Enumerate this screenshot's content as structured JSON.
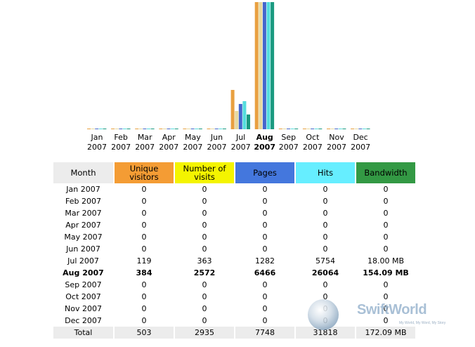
{
  "chart_data": {
    "type": "bar",
    "categories": [
      {
        "month": "Jan",
        "year": "2007"
      },
      {
        "month": "Feb",
        "year": "2007"
      },
      {
        "month": "Mar",
        "year": "2007"
      },
      {
        "month": "Apr",
        "year": "2007"
      },
      {
        "month": "May",
        "year": "2007"
      },
      {
        "month": "Jun",
        "year": "2007"
      },
      {
        "month": "Jul",
        "year": "2007"
      },
      {
        "month": "Aug",
        "year": "2007",
        "current": true
      },
      {
        "month": "Sep",
        "year": "2007"
      },
      {
        "month": "Oct",
        "year": "2007"
      },
      {
        "month": "Nov",
        "year": "2007"
      },
      {
        "month": "Dec",
        "year": "2007"
      }
    ],
    "series": [
      {
        "name": "Unique visitors",
        "color": "#e8a040",
        "values": [
          0,
          0,
          0,
          0,
          0,
          0,
          119,
          384,
          0,
          0,
          0,
          0
        ]
      },
      {
        "name": "Number of visits",
        "color": "#e6d9a0",
        "values": [
          0,
          0,
          0,
          0,
          0,
          0,
          363,
          2572,
          0,
          0,
          0,
          0
        ]
      },
      {
        "name": "Pages",
        "color": "#4466cc",
        "values": [
          0,
          0,
          0,
          0,
          0,
          0,
          1282,
          6466,
          0,
          0,
          0,
          0
        ]
      },
      {
        "name": "Hits",
        "color": "#55dddd",
        "values": [
          0,
          0,
          0,
          0,
          0,
          0,
          5754,
          26064,
          0,
          0,
          0,
          0
        ]
      },
      {
        "name": "Bandwidth",
        "color": "#1a9a80",
        "values": [
          0,
          0,
          0,
          0,
          0,
          0,
          18.0,
          154.09,
          0,
          0,
          0,
          0
        ]
      }
    ]
  },
  "table": {
    "headers": {
      "month": "Month",
      "visitors": "Unique visitors",
      "visits": "Number of visits",
      "pages": "Pages",
      "hits": "Hits",
      "bandwidth": "Bandwidth"
    },
    "header_colors": {
      "month": "#ececec",
      "visitors": "#f49c34",
      "visits": "#f4f400",
      "pages": "#4477dd",
      "hits": "#66eeff",
      "bandwidth": "#339944"
    },
    "rows": [
      {
        "month": "Jan 2007",
        "visitors": "0",
        "visits": "0",
        "pages": "0",
        "hits": "0",
        "bandwidth": "0"
      },
      {
        "month": "Feb 2007",
        "visitors": "0",
        "visits": "0",
        "pages": "0",
        "hits": "0",
        "bandwidth": "0"
      },
      {
        "month": "Mar 2007",
        "visitors": "0",
        "visits": "0",
        "pages": "0",
        "hits": "0",
        "bandwidth": "0"
      },
      {
        "month": "Apr 2007",
        "visitors": "0",
        "visits": "0",
        "pages": "0",
        "hits": "0",
        "bandwidth": "0"
      },
      {
        "month": "May 2007",
        "visitors": "0",
        "visits": "0",
        "pages": "0",
        "hits": "0",
        "bandwidth": "0"
      },
      {
        "month": "Jun 2007",
        "visitors": "0",
        "visits": "0",
        "pages": "0",
        "hits": "0",
        "bandwidth": "0"
      },
      {
        "month": "Jul 2007",
        "visitors": "119",
        "visits": "363",
        "pages": "1282",
        "hits": "5754",
        "bandwidth": "18.00 MB"
      },
      {
        "month": "Aug 2007",
        "visitors": "384",
        "visits": "2572",
        "pages": "6466",
        "hits": "26064",
        "bandwidth": "154.09 MB",
        "current": true
      },
      {
        "month": "Sep 2007",
        "visitors": "0",
        "visits": "0",
        "pages": "0",
        "hits": "0",
        "bandwidth": "0"
      },
      {
        "month": "Oct 2007",
        "visitors": "0",
        "visits": "0",
        "pages": "0",
        "hits": "0",
        "bandwidth": "0"
      },
      {
        "month": "Nov 2007",
        "visitors": "0",
        "visits": "0",
        "pages": "0",
        "hits": "0",
        "bandwidth": "0"
      },
      {
        "month": "Dec 2007",
        "visitors": "0",
        "visits": "0",
        "pages": "0",
        "hits": "0",
        "bandwidth": "0"
      }
    ],
    "total": {
      "month": "Total",
      "visitors": "503",
      "visits": "2935",
      "pages": "7748",
      "hits": "31818",
      "bandwidth": "172.09 MB"
    }
  },
  "watermark": {
    "brand": "SwiftWorld",
    "tagline": "My World, My Word, My Story",
    "icon": "globe-orb-icon"
  }
}
